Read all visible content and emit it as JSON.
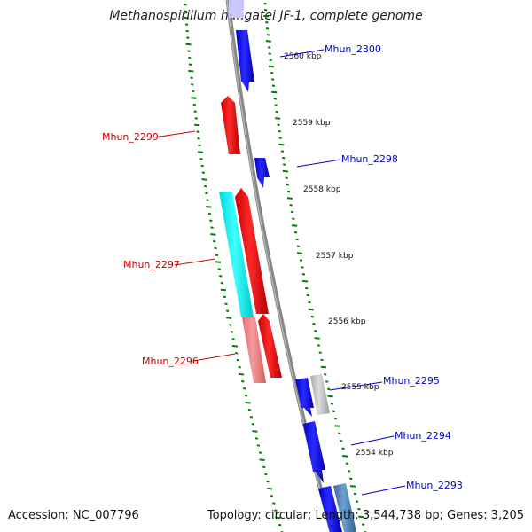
{
  "title": "Methanospirillum hungatei JF-1, complete genome",
  "accession_text": "Accession: NC_007796",
  "topology_text": "Topology: circular; Length: 3,544,738 bp; Genes: 3,205",
  "colors": {
    "forward": "#ff0000",
    "reverse": "#0000ff",
    "forward_light": "#f08080",
    "cyan": "#00ffff",
    "grey": "#c0c0c0",
    "steel": "#4682b4",
    "tick": "#008000",
    "backbone": "#888888"
  },
  "kbp_labels": [
    "2560 kbp",
    "2559 kbp",
    "2558 kbp",
    "2557 kbp",
    "2556 kbp",
    "2555 kbp",
    "2554 kbp"
  ],
  "genes": [
    {
      "name": "Mhun_2300",
      "label": "Mhun_2300",
      "strand": "reverse",
      "color": "#0000ff"
    },
    {
      "name": "Mhun_2299",
      "label": "Mhun_2299",
      "strand": "forward",
      "color": "#ff0000"
    },
    {
      "name": "Mhun_2298",
      "label": "Mhun_2298",
      "strand": "reverse",
      "color": "#0000ff"
    },
    {
      "name": "Mhun_2297",
      "label": "Mhun_2297",
      "strand": "forward",
      "color": "#ff0000"
    },
    {
      "name": "Mhun_2296",
      "label": "Mhun_2296",
      "strand": "forward",
      "color": "#ff0000"
    },
    {
      "name": "Mhun_2295",
      "label": "Mhun_2295",
      "strand": "reverse",
      "color": "#0000ff"
    },
    {
      "name": "Mhun_2294",
      "label": "Mhun_2294",
      "strand": "reverse",
      "color": "#0000ff"
    },
    {
      "name": "Mhun_2293",
      "label": "Mhun_2293",
      "strand": "reverse",
      "color": "#0000ff"
    }
  ]
}
